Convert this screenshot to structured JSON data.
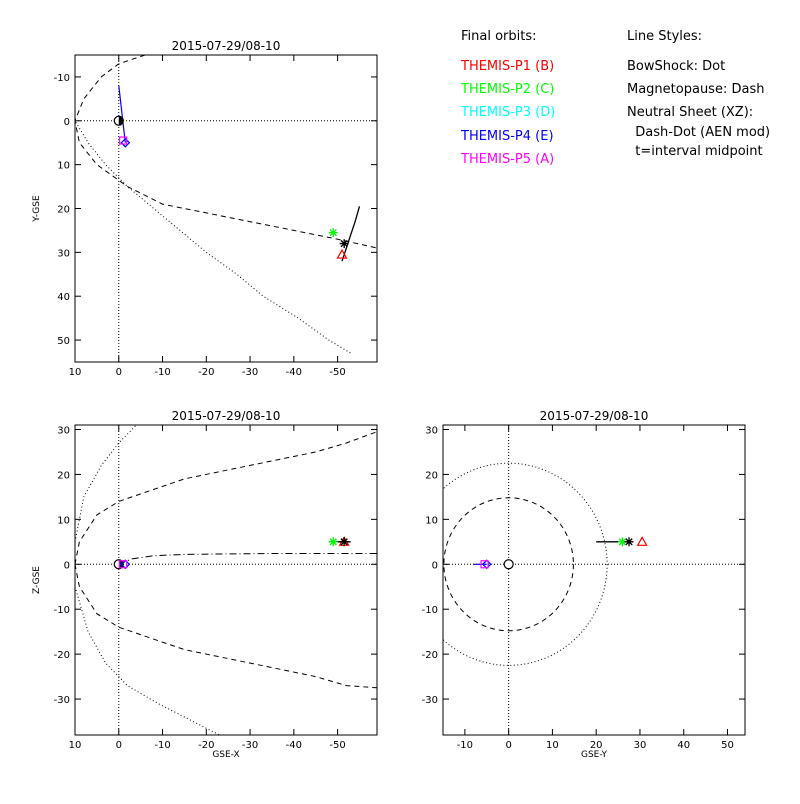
{
  "legend": {
    "orbits_header": "Final orbits:",
    "probes": [
      {
        "label": "THEMIS-P1 (B)",
        "color": "#ff0000"
      },
      {
        "label": "THEMIS-P2 (C)",
        "color": "#00ff00"
      },
      {
        "label": "THEMIS-P3 (D)",
        "color": "#00ffff"
      },
      {
        "label": "THEMIS-P4 (E)",
        "color": "#0000ff"
      },
      {
        "label": "THEMIS-P5 (A)",
        "color": "#ff00ff"
      }
    ],
    "styles_header": "Line Styles:",
    "style_lines": [
      "BowShock: Dot",
      "Magnetopause: Dash",
      "Neutral Sheet (XZ):",
      "  Dash-Dot (AEN mod)",
      "  t=interval midpoint"
    ]
  },
  "chart_data": [
    {
      "type": "scatter",
      "title": "2015-07-29/08-10",
      "xlabel": "",
      "ylabel": "Y-GSE",
      "x_axis": "GSE-X",
      "xlim": [
        10,
        -59
      ],
      "ylim": [
        -15,
        55
      ],
      "xticks": [
        10,
        0,
        -10,
        -20,
        -30,
        -40,
        -50
      ],
      "yticks": [
        -10,
        0,
        10,
        20,
        30,
        40,
        50
      ],
      "y_reversed": true,
      "zero_lines": true,
      "curves": [
        {
          "name": "bow_shock",
          "style": "dotted",
          "points": [
            [
              13.5,
              -11
            ],
            [
              12,
              -5
            ],
            [
              10,
              0
            ],
            [
              7,
              5
            ],
            [
              3,
              10
            ],
            [
              -2,
              15
            ],
            [
              -8,
              20
            ],
            [
              -14,
              25
            ],
            [
              -20,
              30
            ],
            [
              -27,
              35
            ],
            [
              -33,
              40
            ],
            [
              -41,
              45
            ],
            [
              -48,
              50
            ],
            [
              -53,
              53
            ]
          ]
        },
        {
          "name": "magnetopause",
          "style": "dashed",
          "points": [
            [
              -6,
              -15
            ],
            [
              0,
              -13
            ],
            [
              4,
              -10
            ],
            [
              8,
              -5
            ],
            [
              10,
              0
            ],
            [
              9,
              5
            ],
            [
              5,
              10
            ],
            [
              -2,
              15
            ],
            [
              -10,
              19
            ],
            [
              -20,
              21
            ],
            [
              -30,
              23
            ],
            [
              -40,
              25
            ],
            [
              -50,
              27
            ],
            [
              -59,
              29
            ]
          ]
        },
        {
          "name": "orbit_p1",
          "style": "solid",
          "points": [
            [
              -51,
              32
            ],
            [
              -52,
              29
            ],
            [
              -53,
              26
            ],
            [
              -54,
              23
            ],
            [
              -55,
              19.5
            ]
          ]
        }
      ],
      "probes": [
        {
          "probe": "P1",
          "marker": "triangle",
          "x": -51,
          "y": 30.5
        },
        {
          "probe": "P2",
          "marker": "asterisk",
          "x": -49,
          "y": 25.5
        },
        {
          "probe": "P3",
          "marker": "diamond",
          "x": -1.5,
          "y": 5
        },
        {
          "probe": "P4",
          "marker": "diamond",
          "x": -1.5,
          "y": 5
        },
        {
          "probe": "P5",
          "marker": "square",
          "x": -1,
          "y": 4.5
        },
        {
          "probe": "P1-orbit-marker",
          "marker": "asterisk-black",
          "x": -51.5,
          "y": 28
        }
      ],
      "probe_tails": [
        [
          [
            0,
            -8
          ],
          [
            -1.5,
            5
          ]
        ]
      ],
      "earth": {
        "x": 0,
        "y": 0
      }
    },
    {
      "type": "scatter",
      "title": "2015-07-29/08-10",
      "xlabel": "GSE-X",
      "ylabel": "Z-GSE",
      "xlim": [
        10,
        -59
      ],
      "ylim": [
        -38,
        31
      ],
      "xticks": [
        10,
        0,
        -10,
        -20,
        -30,
        -40,
        -50
      ],
      "yticks": [
        -30,
        -20,
        -10,
        0,
        10,
        20,
        30
      ],
      "y_reversed": false,
      "zero_lines": true,
      "curves": [
        {
          "name": "bow_shock_north",
          "style": "dotted",
          "points": [
            [
              10,
              5
            ],
            [
              8,
              15
            ],
            [
              4,
              22
            ],
            [
              0,
              27
            ],
            [
              -4,
              31
            ]
          ]
        },
        {
          "name": "bow_shock_south",
          "style": "dotted",
          "points": [
            [
              10,
              -5
            ],
            [
              7,
              -15
            ],
            [
              3,
              -22
            ],
            [
              -2,
              -27
            ],
            [
              -9,
              -31
            ],
            [
              -15,
              -34
            ],
            [
              -23,
              -38
            ]
          ]
        },
        {
          "name": "magnetopause_north",
          "style": "dashed",
          "points": [
            [
              10,
              0
            ],
            [
              9,
              5
            ],
            [
              5,
              11
            ],
            [
              0,
              14
            ],
            [
              -6,
              16
            ],
            [
              -15,
              19
            ],
            [
              -25,
              21
            ],
            [
              -35,
              23
            ],
            [
              -45,
              25
            ],
            [
              -52,
              27
            ],
            [
              -59,
              29.5
            ]
          ]
        },
        {
          "name": "magnetopause_south",
          "style": "dashed",
          "points": [
            [
              10,
              0
            ],
            [
              9,
              -5
            ],
            [
              5,
              -11
            ],
            [
              0,
              -14
            ],
            [
              -6,
              -16
            ],
            [
              -15,
              -19
            ],
            [
              -25,
              -21
            ],
            [
              -35,
              -23
            ],
            [
              -45,
              -25
            ],
            [
              -52,
              -27
            ],
            [
              -59,
              -27.5
            ]
          ]
        },
        {
          "name": "neutral_sheet",
          "style": "dashdot",
          "points": [
            [
              0,
              0
            ],
            [
              -3,
              1.2
            ],
            [
              -8,
              1.9
            ],
            [
              -15,
              2.2
            ],
            [
              -25,
              2.3
            ],
            [
              -35,
              2.4
            ],
            [
              -45,
              2.4
            ],
            [
              -59,
              2.4
            ]
          ]
        },
        {
          "name": "orbit_p1",
          "style": "solid",
          "points": [
            [
              -48,
              5
            ],
            [
              -53,
              5
            ]
          ]
        }
      ],
      "probes": [
        {
          "probe": "P1",
          "marker": "triangle",
          "x": -51.5,
          "y": 5
        },
        {
          "probe": "P2",
          "marker": "asterisk",
          "x": -49,
          "y": 5
        },
        {
          "probe": "P3",
          "marker": "diamond",
          "x": -1.5,
          "y": 0
        },
        {
          "probe": "P4",
          "marker": "diamond",
          "x": -1.5,
          "y": 0
        },
        {
          "probe": "P5",
          "marker": "square",
          "x": -1,
          "y": 0
        },
        {
          "probe": "P1-orbit-marker",
          "marker": "asterisk-black",
          "x": -51.5,
          "y": 5
        }
      ],
      "probe_tails": [],
      "earth": {
        "x": 0,
        "y": 0
      }
    },
    {
      "type": "scatter",
      "title": "2015-07-29/08-10",
      "xlabel": "GSE-Y",
      "ylabel": "",
      "xlim": [
        -15,
        54
      ],
      "ylim": [
        -38,
        31
      ],
      "xticks": [
        -10,
        0,
        10,
        20,
        30,
        40,
        50
      ],
      "yticks": [
        -30,
        -20,
        -10,
        0,
        10,
        20,
        30
      ],
      "y_reversed": false,
      "zero_lines": true,
      "circles": [
        {
          "name": "bow_shock",
          "style": "dotted",
          "r": 22.5
        },
        {
          "name": "magnetopause",
          "style": "dashed",
          "r": 14.8
        }
      ],
      "curves": [
        {
          "name": "orbit_p1",
          "style": "solid",
          "points": [
            [
              20,
              5
            ],
            [
              27,
              5
            ]
          ]
        }
      ],
      "probes": [
        {
          "probe": "P1",
          "marker": "triangle",
          "x": 30.5,
          "y": 5
        },
        {
          "probe": "P2",
          "marker": "asterisk",
          "x": 26,
          "y": 5
        },
        {
          "probe": "P3",
          "marker": "diamond",
          "x": -5,
          "y": 0
        },
        {
          "probe": "P4",
          "marker": "diamond",
          "x": -5,
          "y": 0
        },
        {
          "probe": "P5",
          "marker": "square",
          "x": -5.5,
          "y": 0
        },
        {
          "probe": "P1-orbit-marker",
          "marker": "asterisk-black",
          "x": 27.5,
          "y": 5
        }
      ],
      "probe_tails": [
        [
          [
            -8,
            0
          ],
          [
            -5,
            0
          ]
        ]
      ],
      "earth": {
        "x": 0,
        "y": 0
      }
    }
  ]
}
